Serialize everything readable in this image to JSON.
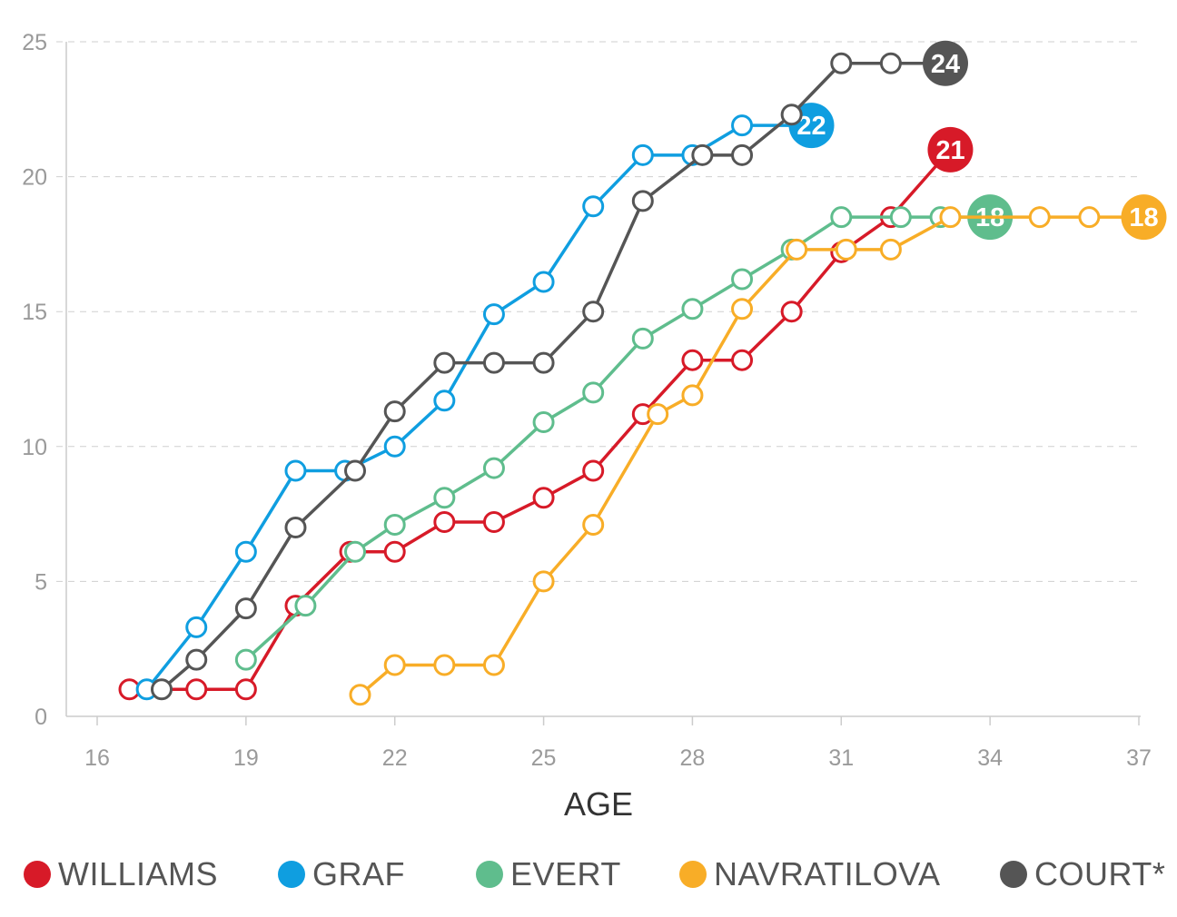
{
  "chart_data": {
    "type": "line",
    "title": "",
    "xlabel": "AGE",
    "ylabel": "",
    "xlim": [
      16,
      37
    ],
    "ylim": [
      0,
      25
    ],
    "x_ticks": [
      "16",
      "19",
      "22",
      "25",
      "28",
      "31",
      "34",
      "37"
    ],
    "y_ticks": [
      "0",
      "5",
      "10",
      "15",
      "20",
      "25"
    ],
    "grid": "horizontal dashed",
    "series": [
      {
        "name": "WILLIAMS",
        "color": "#d71a28",
        "final_label": "21",
        "points": [
          [
            16.65,
            1
          ],
          [
            18,
            1
          ],
          [
            19,
            1
          ],
          [
            20,
            4.1
          ],
          [
            21.1,
            6.1
          ],
          [
            22,
            6.1
          ],
          [
            23,
            7.2
          ],
          [
            24,
            7.2
          ],
          [
            25,
            8.1
          ],
          [
            26,
            9.1
          ],
          [
            27,
            11.2
          ],
          [
            28,
            13.2
          ],
          [
            29,
            13.2
          ],
          [
            30,
            15
          ],
          [
            31,
            17.2
          ],
          [
            32,
            18.5
          ],
          [
            33.2,
            21
          ]
        ]
      },
      {
        "name": "GRAF",
        "color": "#0f9ee0",
        "final_label": "22",
        "points": [
          [
            17,
            1
          ],
          [
            18,
            3.3
          ],
          [
            19,
            6.1
          ],
          [
            20,
            9.1
          ],
          [
            21,
            9.1
          ],
          [
            22,
            10
          ],
          [
            23,
            11.7
          ],
          [
            24,
            14.9
          ],
          [
            25,
            16.1
          ],
          [
            26,
            18.9
          ],
          [
            27,
            20.8
          ],
          [
            28,
            20.8
          ],
          [
            29,
            21.9
          ],
          [
            30.4,
            21.9
          ]
        ]
      },
      {
        "name": "EVERT",
        "color": "#5fbd8d",
        "final_label": "18",
        "points": [
          [
            19,
            2.1
          ],
          [
            20.2,
            4.1
          ],
          [
            21.2,
            6.1
          ],
          [
            22,
            7.1
          ],
          [
            23,
            8.1
          ],
          [
            24,
            9.2
          ],
          [
            25,
            10.9
          ],
          [
            26,
            12
          ],
          [
            27,
            14
          ],
          [
            28,
            15.1
          ],
          [
            29,
            16.2
          ],
          [
            30,
            17.3
          ],
          [
            31,
            18.5
          ],
          [
            32.2,
            18.5
          ],
          [
            33,
            18.5
          ],
          [
            34,
            18.5
          ]
        ]
      },
      {
        "name": "NAVRATILOVA",
        "color": "#f8ad27",
        "final_label": "18",
        "points": [
          [
            21.3,
            0.8
          ],
          [
            22,
            1.9
          ],
          [
            23,
            1.9
          ],
          [
            24,
            1.9
          ],
          [
            25,
            5
          ],
          [
            26,
            7.1
          ],
          [
            27.3,
            11.2
          ],
          [
            28,
            11.9
          ],
          [
            29,
            15.1
          ],
          [
            30.1,
            17.3
          ],
          [
            31.1,
            17.3
          ],
          [
            32,
            17.3
          ],
          [
            33.2,
            18.5
          ],
          [
            35,
            18.5
          ],
          [
            36,
            18.5
          ],
          [
            37.1,
            18.5
          ]
        ]
      },
      {
        "name": "COURT*",
        "color": "#555555",
        "final_label": "24",
        "points": [
          [
            17.3,
            1
          ],
          [
            18,
            2.1
          ],
          [
            19,
            4
          ],
          [
            20,
            7
          ],
          [
            21.2,
            9.1
          ],
          [
            22,
            11.3
          ],
          [
            23,
            13.1
          ],
          [
            24,
            13.1
          ],
          [
            25,
            13.1
          ],
          [
            26,
            15
          ],
          [
            27,
            19.1
          ],
          [
            28.2,
            20.8
          ],
          [
            29,
            20.8
          ],
          [
            30,
            22.3
          ],
          [
            31,
            24.2
          ],
          [
            32,
            24.2
          ],
          [
            33.1,
            24.2
          ]
        ]
      }
    ]
  }
}
